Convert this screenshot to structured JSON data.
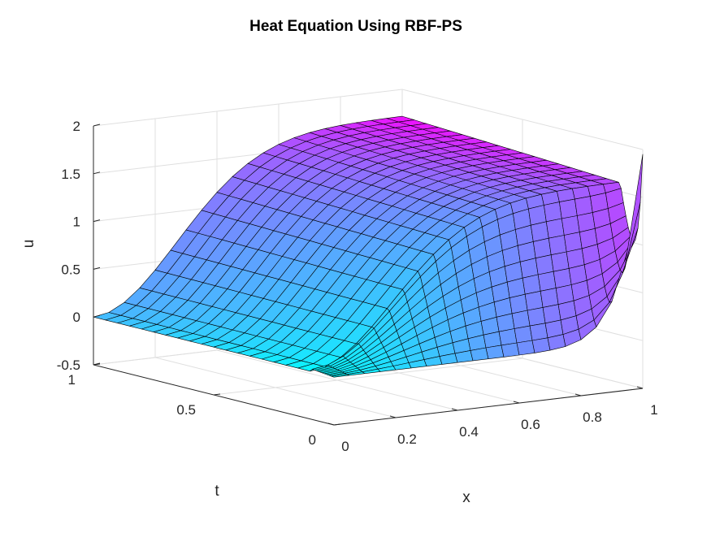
{
  "chart_data": {
    "type": "surface",
    "title": "Heat Equation Using RBF-PS",
    "xlabel": "x",
    "ylabel": "t",
    "zlabel": "u",
    "xlim": [
      0,
      1
    ],
    "ylim": [
      0,
      1
    ],
    "zlim": [
      -0.5,
      2
    ],
    "xticks": [
      "0",
      "0.2",
      "0.4",
      "0.6",
      "0.8",
      "1"
    ],
    "yticks": [
      "0",
      "0.5",
      "1"
    ],
    "zticks": [
      "-0.5",
      "0",
      "0.5",
      "1",
      "1.5",
      "2"
    ],
    "colormap": "cool",
    "colormap_start": "#00ffff",
    "colormap_end": "#ff00ff",
    "grid": true,
    "grid_x": [
      0,
      0.05,
      0.1,
      0.15,
      0.2,
      0.25,
      0.3,
      0.35,
      0.4,
      0.45,
      0.5,
      0.55,
      0.6,
      0.65,
      0.7,
      0.75,
      0.8,
      0.85,
      0.9,
      0.95,
      1
    ],
    "grid_t": [
      0,
      0.01,
      0.02,
      0.03,
      0.04,
      0.05,
      0.06,
      0.07,
      0.08,
      0.09,
      0.1,
      0.15,
      0.2,
      0.25,
      0.3,
      0.35,
      0.4,
      0.45,
      0.5,
      0.55,
      0.6,
      0.65,
      0.7,
      0.75,
      0.8,
      0.85,
      0.9,
      0.95,
      1
    ],
    "final_profile": {
      "t": 1,
      "x": [
        0,
        0.2,
        0.4,
        0.6,
        0.8,
        1
      ],
      "u": [
        0.0,
        0.63,
        1.23,
        1.56,
        1.66,
        1.72
      ]
    },
    "initial_condition": {
      "t": 0,
      "x": [
        0,
        0.8,
        0.9,
        1
      ],
      "u": [
        0.0,
        0.0,
        0.6,
        1.95
      ]
    }
  }
}
